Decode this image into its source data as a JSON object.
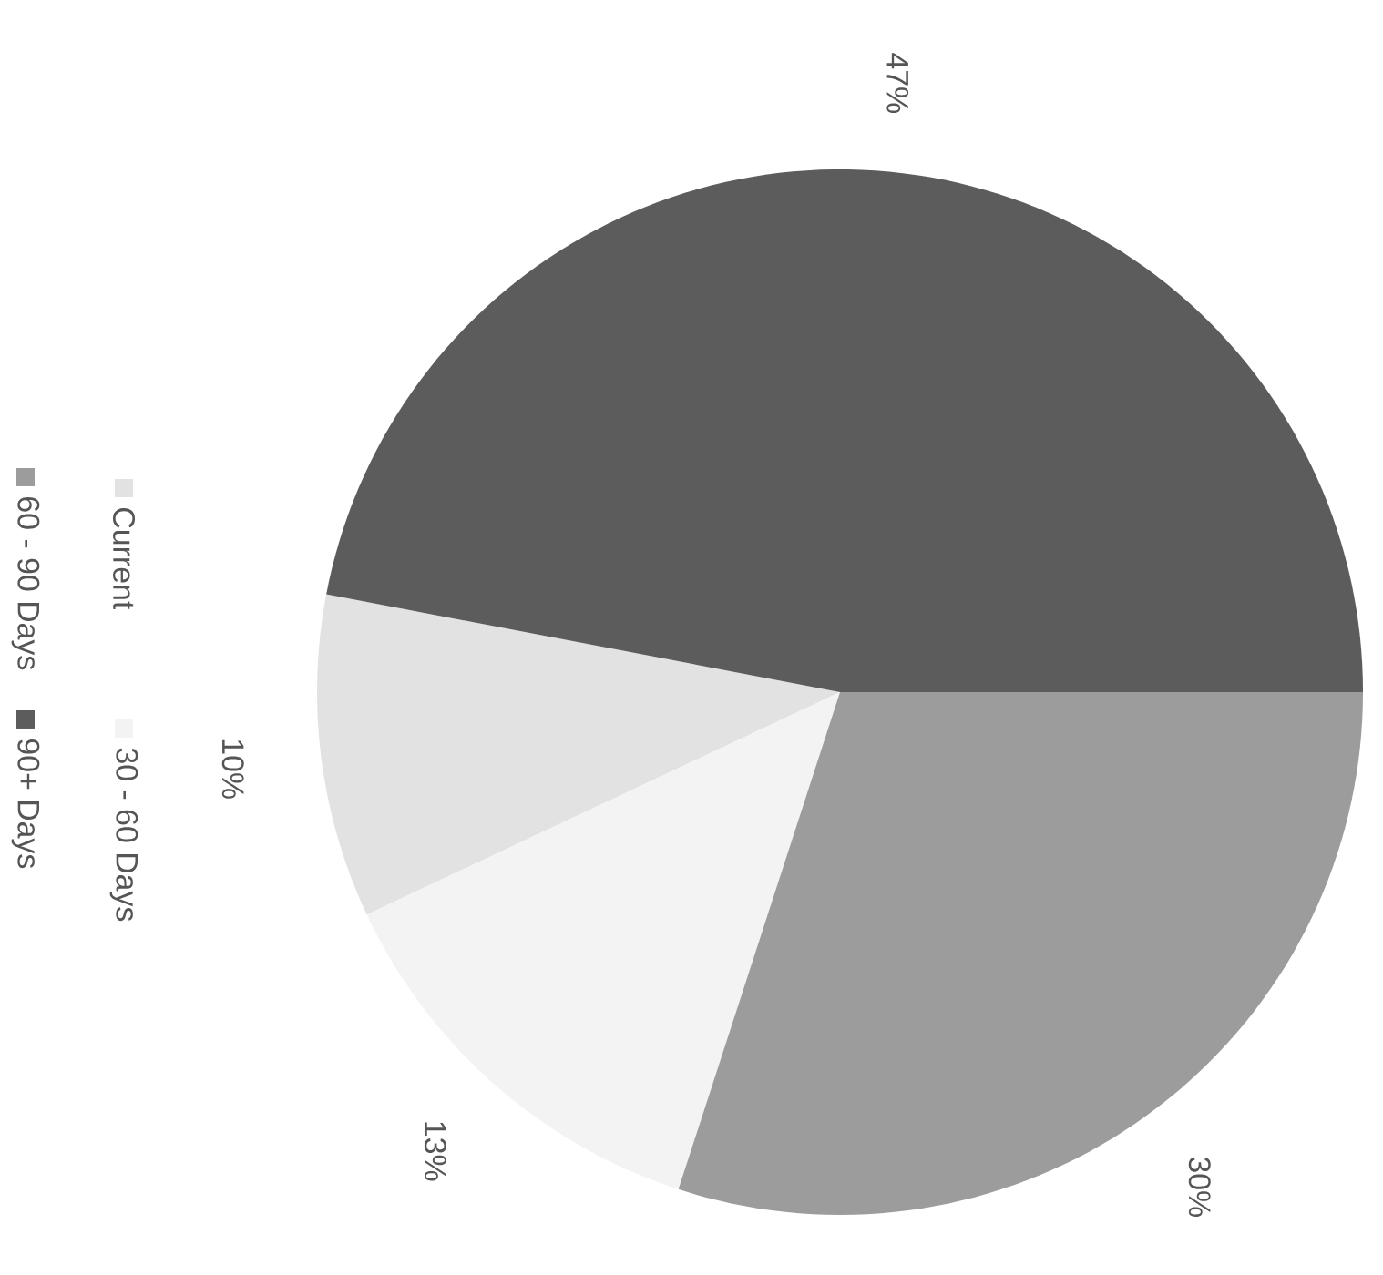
{
  "chart_data": {
    "type": "pie",
    "categories": [
      "Current",
      "30 - 60 Days",
      "60 - 90 Days",
      "90+ Days"
    ],
    "values": [
      10,
      13,
      30,
      47
    ],
    "colors": [
      "#e2e2e2",
      "#f3f3f3",
      "#9c9c9c",
      "#5c5c5c"
    ],
    "value_labels": [
      "10%",
      "13%",
      "30%",
      "47%"
    ],
    "legend": "left"
  }
}
